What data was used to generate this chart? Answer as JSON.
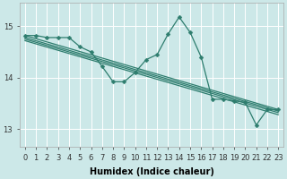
{
  "xlabel": "Humidex (Indice chaleur)",
  "bg_color": "#cce8e8",
  "grid_color": "#ffffff",
  "line_color": "#2e7d6e",
  "xlim": [
    -0.5,
    23.5
  ],
  "ylim": [
    12.65,
    15.45
  ],
  "yticks": [
    13,
    14,
    15
  ],
  "xticks": [
    0,
    1,
    2,
    3,
    4,
    5,
    6,
    7,
    8,
    9,
    10,
    11,
    12,
    13,
    14,
    15,
    16,
    17,
    18,
    19,
    20,
    21,
    22,
    23
  ],
  "data_series": [
    14.82,
    14.82,
    14.78,
    14.78,
    14.78,
    14.6,
    14.5,
    14.22,
    13.92,
    13.92,
    14.1,
    14.35,
    14.45,
    14.85,
    15.18,
    14.88,
    14.4,
    13.58,
    13.58,
    13.55,
    13.52,
    13.08,
    13.38,
    13.38
  ],
  "trend_lines": [
    {
      "x0": 0,
      "y0": 14.82,
      "x1": 23,
      "y1": 13.38
    },
    {
      "x0": 0,
      "y0": 14.78,
      "x1": 23,
      "y1": 13.35
    },
    {
      "x0": 0,
      "y0": 14.75,
      "x1": 23,
      "y1": 13.32
    },
    {
      "x0": 0,
      "y0": 14.72,
      "x1": 23,
      "y1": 13.28
    }
  ],
  "marker": "D",
  "markersize": 2.5,
  "linewidth": 0.9,
  "fontsize_label": 7,
  "fontsize_tick": 6
}
